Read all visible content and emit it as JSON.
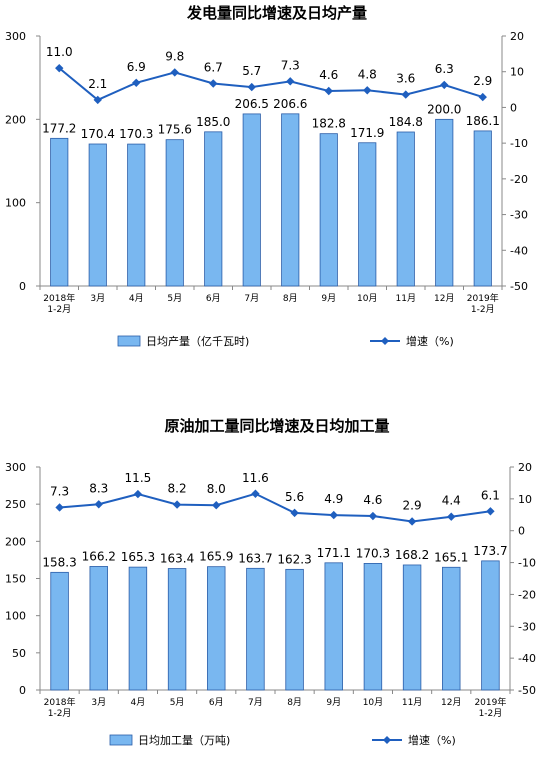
{
  "chart_data": [
    {
      "type": "bar",
      "title": "发电量同比增速及日均产量",
      "categories": [
        "2018年\n1-2月",
        "3月",
        "4月",
        "5月",
        "6月",
        "7月",
        "8月",
        "9月",
        "10月",
        "11月",
        "12月",
        "2019年\n1-2月"
      ],
      "series": [
        {
          "name": "日均产量（亿千瓦时)",
          "kind": "bar",
          "axis": "left",
          "values": [
            177.2,
            170.4,
            170.3,
            175.6,
            185.0,
            206.5,
            206.6,
            182.8,
            171.9,
            184.8,
            200.0,
            186.1
          ]
        },
        {
          "name": "增速（%)",
          "kind": "line",
          "axis": "right",
          "values": [
            11.0,
            2.1,
            6.9,
            9.8,
            6.7,
            5.7,
            7.3,
            4.6,
            4.8,
            3.6,
            6.3,
            2.9
          ]
        }
      ],
      "ylim": [
        0,
        300
      ],
      "yticks": [
        0,
        100,
        200,
        300
      ],
      "y2lim": [
        -50,
        20
      ],
      "y2ticks": [
        20,
        10,
        0,
        -10,
        -20,
        -30,
        -40,
        -50
      ],
      "legend_position": "bottom",
      "bar_color": "#79b7f0",
      "line_color": "#1f5fbf"
    },
    {
      "type": "bar",
      "title": "原油加工量同比增速及日均加工量",
      "categories": [
        "2018年\n1-2月",
        "3月",
        "4月",
        "5月",
        "6月",
        "7月",
        "8月",
        "9月",
        "10月",
        "11月",
        "12月",
        "2019年\n1-2月"
      ],
      "series": [
        {
          "name": "日均加工量（万吨)",
          "kind": "bar",
          "axis": "left",
          "values": [
            158.3,
            166.2,
            165.3,
            163.4,
            165.9,
            163.7,
            162.3,
            171.1,
            170.3,
            168.2,
            165.1,
            173.7
          ]
        },
        {
          "name": "增速（%)",
          "kind": "line",
          "axis": "right",
          "values": [
            7.3,
            8.3,
            11.5,
            8.2,
            8.0,
            11.6,
            5.6,
            4.9,
            4.6,
            2.9,
            4.4,
            6.1
          ]
        }
      ],
      "ylim": [
        0,
        300
      ],
      "yticks": [
        0,
        50,
        100,
        150,
        200,
        250,
        300
      ],
      "y2lim": [
        -50,
        20
      ],
      "y2ticks": [
        20,
        10,
        0,
        -10,
        -20,
        -30,
        -40,
        -50
      ],
      "legend_position": "bottom",
      "bar_color": "#79b7f0",
      "line_color": "#1f5fbf"
    }
  ]
}
